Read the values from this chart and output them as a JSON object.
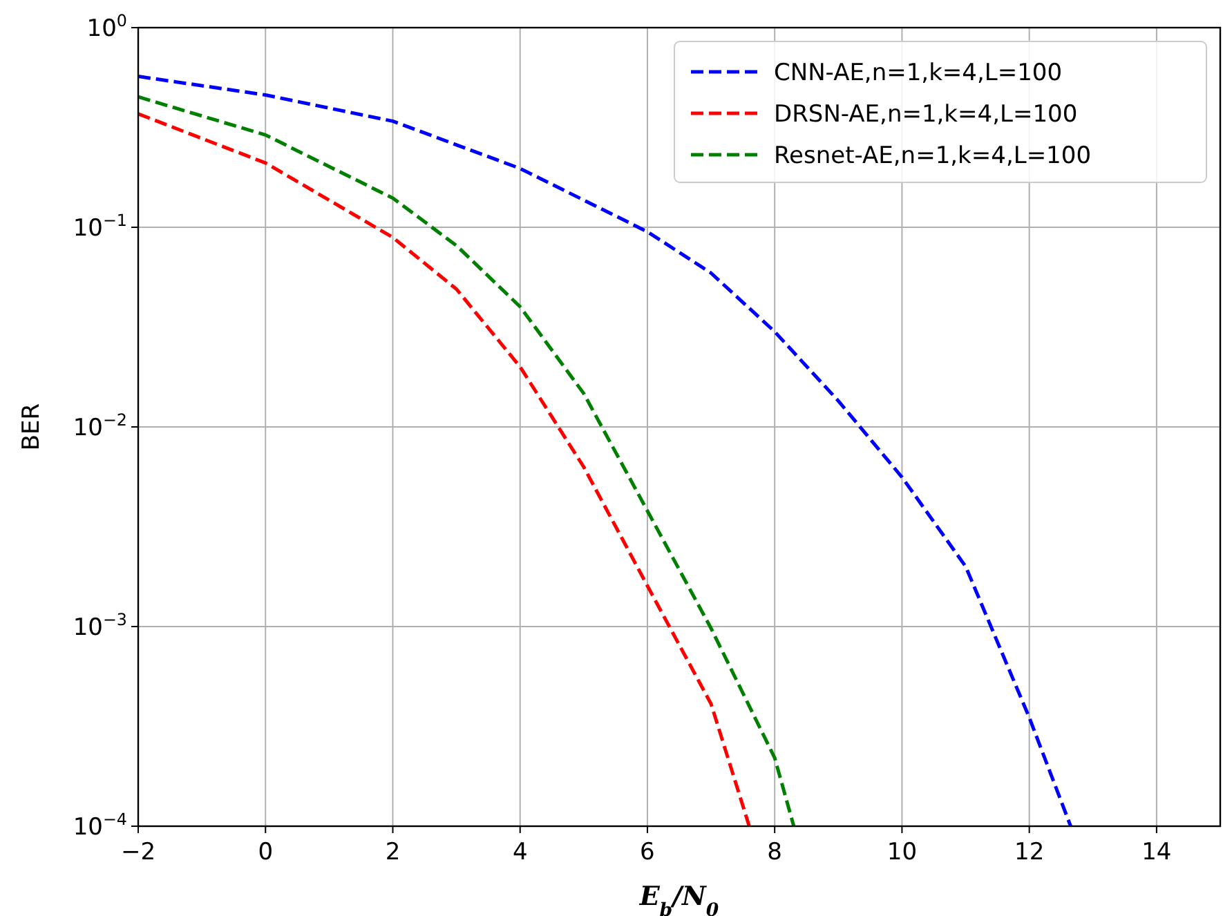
{
  "chart_data": {
    "type": "line",
    "xlabel": "E$_{b}$/N$_{0}$",
    "ylabel": "BER",
    "log": "y",
    "xlim": [
      -2,
      15
    ],
    "ylim": [
      0.0001,
      1
    ],
    "xticks": [
      {
        "value": -2,
        "label": "−2"
      },
      0,
      2,
      4,
      6,
      8,
      10,
      12,
      14
    ],
    "yticks": [
      {
        "value": 0.0001,
        "label": "10$^{−4}$"
      },
      {
        "value": 0.001,
        "label": "10$^{−3}$"
      },
      {
        "value": 0.01,
        "label": "10$^{−2}$"
      },
      {
        "value": 0.1,
        "label": "10$^{−1}$"
      },
      {
        "value": 1,
        "label": "10$^{0}$"
      }
    ],
    "grid": true,
    "legend": "top right",
    "line_style": "dashed",
    "marker": "none",
    "series": [
      {
        "name": "CNN-AE,n=1,k=4,L=100",
        "color": "#0000ff",
        "x": [
          -2,
          0,
          2,
          4,
          6,
          7,
          8,
          9,
          10,
          11,
          12,
          12.65
        ],
        "values": [
          0.57,
          0.46,
          0.34,
          0.197,
          0.095,
          0.059,
          0.03,
          0.0135,
          0.0056,
          0.002,
          0.00035,
          0.0001
        ]
      },
      {
        "name": "DRSN-AE,n=1,k=4,L=100",
        "color": "#ff0000",
        "x": [
          -2,
          0,
          2,
          3,
          4,
          5,
          6,
          7,
          7.6
        ],
        "values": [
          0.37,
          0.21,
          0.089,
          0.049,
          0.02,
          0.0063,
          0.0016,
          0.00041,
          0.0001
        ]
      },
      {
        "name": "Resnet-AE,n=1,k=4,L=100",
        "color": "#008000",
        "x": [
          -2,
          0,
          2,
          3,
          4,
          5,
          6,
          7,
          8,
          8.3
        ],
        "values": [
          0.45,
          0.29,
          0.14,
          0.081,
          0.04,
          0.0147,
          0.0038,
          0.00098,
          0.00022,
          0.0001
        ]
      }
    ]
  }
}
